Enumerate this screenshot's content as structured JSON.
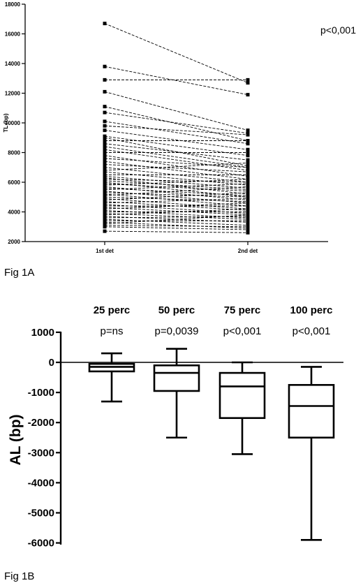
{
  "chart_data": [
    {
      "type": "line",
      "caption": "Fig 1A",
      "ylabel": "TL (bp)",
      "annotation": "p<0,001",
      "categories": [
        "1st det",
        "2nd det"
      ],
      "yticks": [
        2000,
        4000,
        6000,
        8000,
        10000,
        12000,
        14000,
        16000,
        18000
      ],
      "ylim": [
        2000,
        18000
      ],
      "line_style": "dashed",
      "pairs": [
        [
          16700,
          12700
        ],
        [
          13800,
          11900
        ],
        [
          12900,
          12900
        ],
        [
          12100,
          9500
        ],
        [
          11100,
          8800
        ],
        [
          10700,
          9300
        ],
        [
          10100,
          8600
        ],
        [
          9800,
          9200
        ],
        [
          9500,
          8200
        ],
        [
          9100,
          7800
        ],
        [
          9000,
          7100
        ],
        [
          8800,
          8800
        ],
        [
          8600,
          7500
        ],
        [
          8400,
          7000
        ],
        [
          8200,
          6800
        ],
        [
          8000,
          8000
        ],
        [
          7800,
          6400
        ],
        [
          7600,
          7000
        ],
        [
          7400,
          6200
        ],
        [
          7200,
          6700
        ],
        [
          7000,
          6000
        ],
        [
          6800,
          7300
        ],
        [
          6700,
          5800
        ],
        [
          6500,
          6500
        ],
        [
          6400,
          5600
        ],
        [
          6300,
          5200
        ],
        [
          6200,
          6000
        ],
        [
          6100,
          5500
        ],
        [
          6000,
          5000
        ],
        [
          5900,
          5400
        ],
        [
          5800,
          6200
        ],
        [
          5700,
          4800
        ],
        [
          5600,
          5100
        ],
        [
          5500,
          5900
        ],
        [
          5400,
          4600
        ],
        [
          5300,
          5000
        ],
        [
          5200,
          4400
        ],
        [
          5100,
          5700
        ],
        [
          5000,
          4700
        ],
        [
          4900,
          4200
        ],
        [
          4800,
          5300
        ],
        [
          4700,
          4100
        ],
        [
          4600,
          4900
        ],
        [
          4500,
          3900
        ],
        [
          4400,
          4400
        ],
        [
          4300,
          3800
        ],
        [
          4200,
          4600
        ],
        [
          4100,
          3600
        ],
        [
          4000,
          4000
        ],
        [
          3900,
          3500
        ],
        [
          3800,
          4200
        ],
        [
          3700,
          3300
        ],
        [
          3600,
          3700
        ],
        [
          3500,
          3100
        ],
        [
          3400,
          3400
        ],
        [
          3300,
          2900
        ],
        [
          3200,
          3800
        ],
        [
          3100,
          3000
        ],
        [
          2700,
          2600
        ],
        [
          3000,
          2800
        ]
      ]
    },
    {
      "type": "box",
      "caption": "Fig 1B",
      "ylabel": "AL (bp)",
      "yticks": [
        1000,
        0,
        -1000,
        -2000,
        -3000,
        -4000,
        -5000,
        -6000
      ],
      "ylim": [
        -6000,
        1000
      ],
      "reference_line": 0,
      "groups": [
        {
          "label": "25 perc",
          "p": "p=ns",
          "min": -1300,
          "q1": -300,
          "median": -150,
          "q3": -50,
          "max": 300
        },
        {
          "label": "50 perc",
          "p": "p=0,0039",
          "min": -2500,
          "q1": -950,
          "median": -350,
          "q3": -100,
          "max": 450
        },
        {
          "label": "75 perc",
          "p": "p<0,001",
          "min": -3050,
          "q1": -1850,
          "median": -800,
          "q3": -350,
          "max": 0
        },
        {
          "label": "100 perc",
          "p": "p<0,001",
          "min": -5900,
          "q1": -2500,
          "median": -1450,
          "q3": -750,
          "max": -150
        }
      ]
    }
  ]
}
